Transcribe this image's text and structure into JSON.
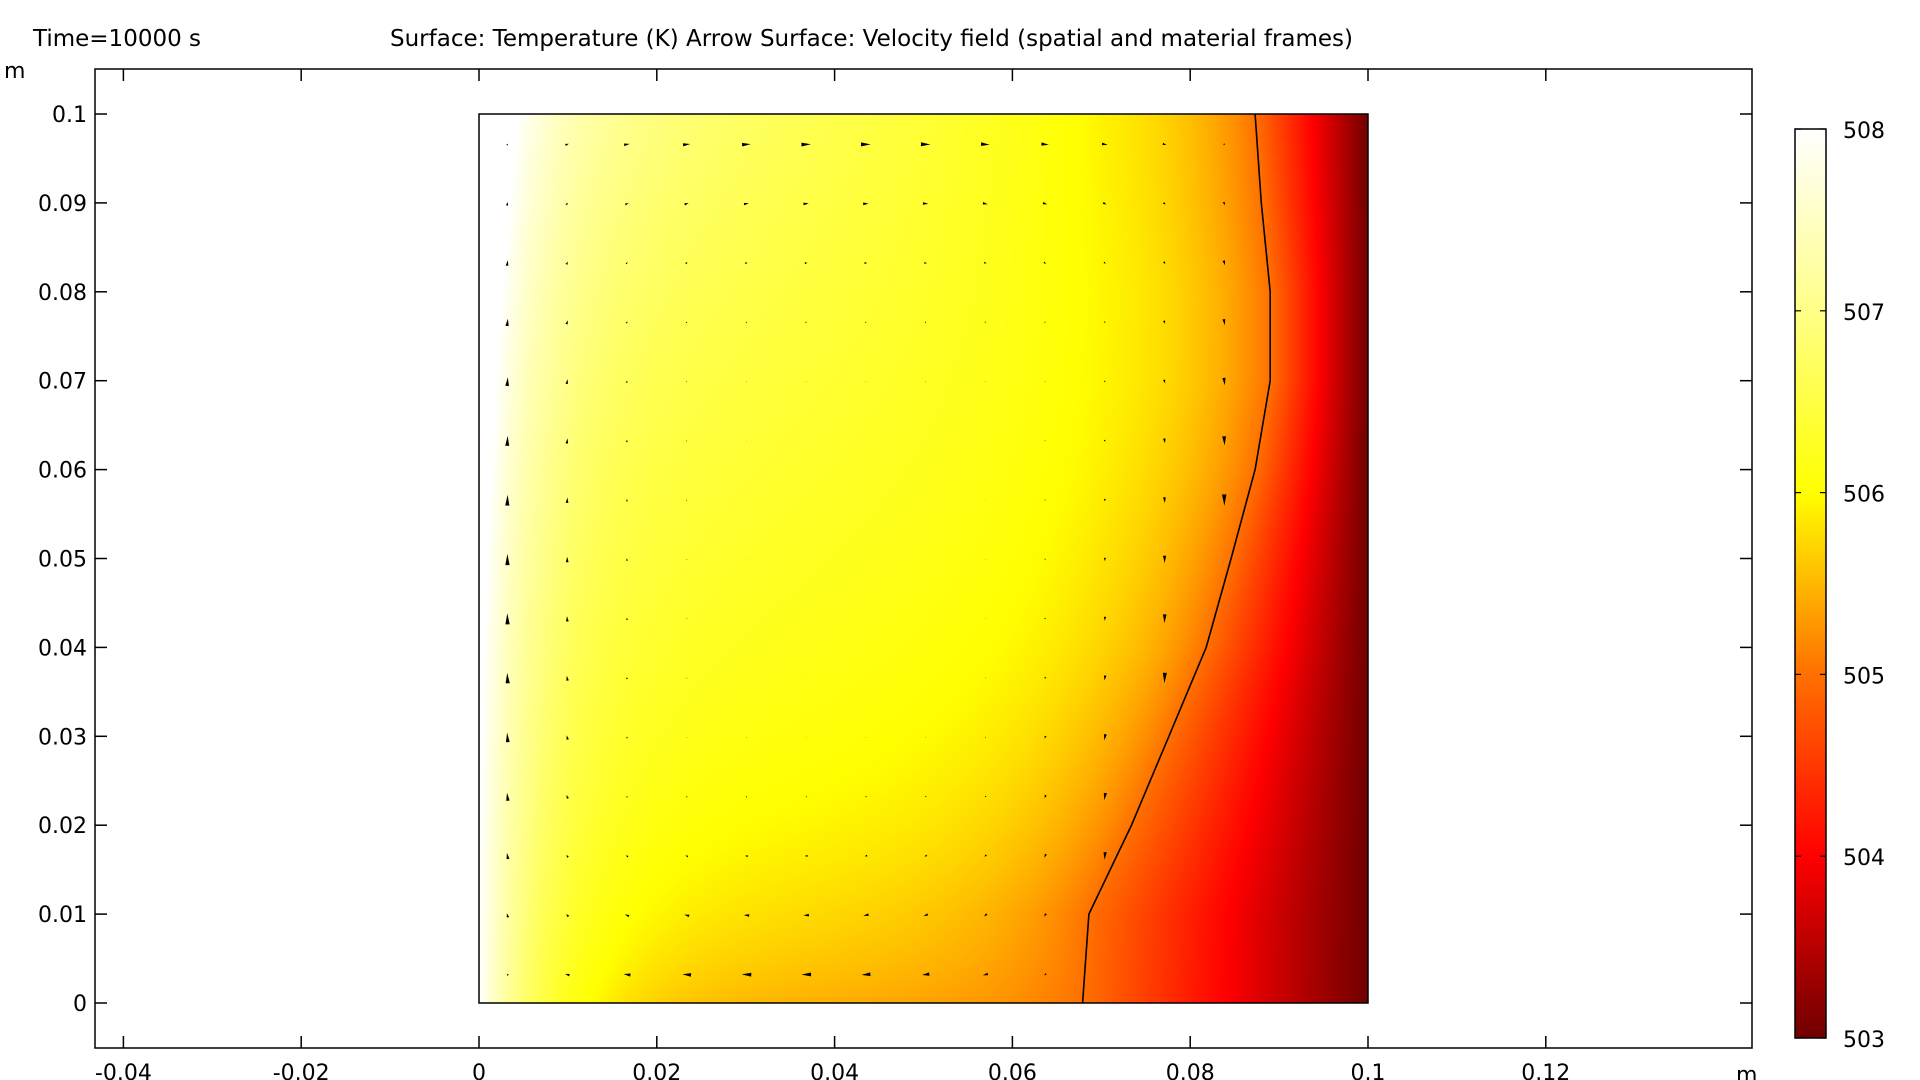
{
  "header": {
    "time_label": "Time=10000 s",
    "plot_title": "Surface: Temperature (K)  Arrow Surface: Velocity field (spatial and material frames)"
  },
  "chart_data": {
    "type": "heatmap",
    "title": "Surface: Temperature (K)  Arrow Surface: Velocity field (spatial and material frames)",
    "xlabel": "m",
    "ylabel": "m",
    "xlim": [
      -0.0432,
      0.1432
    ],
    "ylim": [
      -0.0051,
      0.1051
    ],
    "x_ticks": [
      -0.04,
      -0.02,
      0,
      0.02,
      0.04,
      0.06,
      0.08,
      0.1,
      0.12
    ],
    "x_tick_labels": [
      "-0.04",
      "-0.02",
      "0",
      "0.02",
      "0.04",
      "0.06",
      "0.08",
      "0.1",
      "0.12"
    ],
    "y_ticks": [
      0,
      0.01,
      0.02,
      0.03,
      0.04,
      0.05,
      0.06,
      0.07,
      0.08,
      0.09,
      0.1
    ],
    "y_tick_labels": [
      "0",
      "0.01",
      "0.02",
      "0.03",
      "0.04",
      "0.05",
      "0.06",
      "0.07",
      "0.08",
      "0.09",
      "0.1"
    ],
    "domain": {
      "x": [
        0,
        0.1
      ],
      "y": [
        0,
        0.1
      ]
    },
    "colorbar": {
      "range": [
        503,
        508
      ],
      "ticks": [
        503,
        504,
        505,
        506,
        507,
        508
      ],
      "tick_labels": [
        "503",
        "504",
        "505",
        "506",
        "507",
        "508"
      ],
      "colormap": [
        {
          "value": 503,
          "color": "#700000"
        },
        {
          "value": 504,
          "color": "#ff0000"
        },
        {
          "value": 505,
          "color": "#ff7000"
        },
        {
          "value": 506,
          "color": "#ffff00"
        },
        {
          "value": 507,
          "color": "#ffff88"
        },
        {
          "value": 508,
          "color": "#ffffff"
        }
      ]
    },
    "contour_line": {
      "x": [
        0.0679,
        0.0686,
        0.0734,
        0.0776,
        0.0818,
        0.0846,
        0.0873,
        0.089,
        0.089,
        0.088,
        0.0873
      ],
      "y": [
        0,
        0.01,
        0.02,
        0.03,
        0.04,
        0.05,
        0.06,
        0.07,
        0.08,
        0.09,
        0.1
      ]
    },
    "arrows": {
      "grid_x_start": 0.0032,
      "grid_dx": 0.00672,
      "nx": 13,
      "grid_y_start": 0.0032,
      "grid_dy": 0.00667,
      "ny": 15,
      "rotation": "clockwise"
    }
  }
}
